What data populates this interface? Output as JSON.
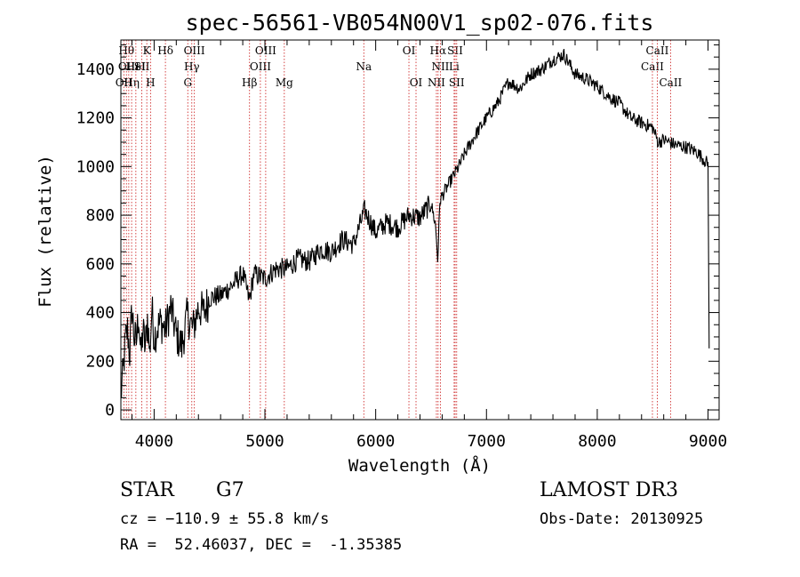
{
  "chart_data": {
    "type": "line",
    "title": "spec-56561-VB054N00V1_sp02-076.fits",
    "xlabel": "Wavelength (Å)",
    "ylabel": "Flux (relative)",
    "xlim": [
      3700,
      9100
    ],
    "ylim": [
      -40,
      1520
    ],
    "xticks": [
      4000,
      5000,
      6000,
      7000,
      8000,
      9000
    ],
    "yticks": [
      0,
      200,
      400,
      600,
      800,
      1000,
      1200,
      1400
    ],
    "series": [
      {
        "name": "flux",
        "x": [
          3700,
          3720,
          3740,
          3760,
          3780,
          3800,
          3820,
          3840,
          3860,
          3880,
          3900,
          3920,
          3940,
          3960,
          3980,
          4000,
          4030,
          4060,
          4100,
          4150,
          4200,
          4250,
          4300,
          4350,
          4400,
          4450,
          4500,
          4600,
          4700,
          4800,
          4860,
          4900,
          5000,
          5100,
          5200,
          5300,
          5400,
          5500,
          5600,
          5700,
          5800,
          5900,
          6000,
          6100,
          6200,
          6300,
          6400,
          6500,
          6540,
          6560,
          6580,
          6600,
          6650,
          6700,
          6750,
          6800,
          6900,
          7000,
          7100,
          7200,
          7300,
          7400,
          7500,
          7600,
          7700,
          7800,
          7900,
          8000,
          8100,
          8200,
          8300,
          8400,
          8500,
          8550,
          8600,
          8700,
          8800,
          8900,
          9000,
          9010
        ],
        "y": [
          60,
          150,
          280,
          330,
          230,
          420,
          300,
          280,
          400,
          220,
          330,
          250,
          380,
          230,
          420,
          300,
          340,
          360,
          330,
          420,
          310,
          260,
          390,
          330,
          420,
          400,
          460,
          470,
          510,
          560,
          450,
          560,
          540,
          580,
          580,
          620,
          610,
          660,
          650,
          700,
          680,
          820,
          730,
          770,
          750,
          800,
          790,
          850,
          760,
          620,
          860,
          880,
          920,
          960,
          1000,
          1050,
          1130,
          1200,
          1260,
          1350,
          1320,
          1380,
          1400,
          1440,
          1460,
          1380,
          1360,
          1330,
          1290,
          1260,
          1200,
          1180,
          1160,
          1100,
          1110,
          1090,
          1080,
          1060,
          1010,
          250
        ]
      }
    ],
    "lines": [
      {
        "x": 3727,
        "label": "OII",
        "row": 2
      },
      {
        "x": 3750,
        "label": "Hθ",
        "row": 0
      },
      {
        "x": 3771,
        "label": "OIII",
        "row": 1
      },
      {
        "x": 3797,
        "label": "Hη",
        "row": 2
      },
      {
        "x": 3835,
        "label": "HeI",
        "row": 1
      },
      {
        "x": 3889,
        "label": "SII",
        "row": 1
      },
      {
        "x": 3934,
        "label": "K",
        "row": 0
      },
      {
        "x": 3968,
        "label": "H",
        "row": 2
      },
      {
        "x": 4102,
        "label": "Hδ",
        "row": 0
      },
      {
        "x": 4304,
        "label": "G",
        "row": 2
      },
      {
        "x": 4340,
        "label": "Hγ",
        "row": 1
      },
      {
        "x": 4363,
        "label": "OIII",
        "row": 0
      },
      {
        "x": 4861,
        "label": "Hβ",
        "row": 2
      },
      {
        "x": 4959,
        "label": "OIII",
        "row": 1
      },
      {
        "x": 5007,
        "label": "OIII",
        "row": 0
      },
      {
        "x": 5175,
        "label": "Mg",
        "row": 2
      },
      {
        "x": 5893,
        "label": "Na",
        "row": 1
      },
      {
        "x": 6300,
        "label": "OI",
        "row": 0
      },
      {
        "x": 6364,
        "label": "OI",
        "row": 2
      },
      {
        "x": 6548,
        "label": "NII",
        "row": 2
      },
      {
        "x": 6563,
        "label": "Hα",
        "row": 0
      },
      {
        "x": 6584,
        "label": "NII",
        "row": 1
      },
      {
        "x": 6708,
        "label": "Li",
        "row": 1
      },
      {
        "x": 6717,
        "label": "SII",
        "row": 0
      },
      {
        "x": 6731,
        "label": "SII",
        "row": 2
      },
      {
        "x": 8498,
        "label": "CaII",
        "row": 1
      },
      {
        "x": 8542,
        "label": "CaII",
        "row": 0
      },
      {
        "x": 8662,
        "label": "CaII",
        "row": 2
      }
    ]
  },
  "info": {
    "class": "STAR",
    "subclass": "G7",
    "survey": "LAMOST DR3",
    "cz": "cz = −110.9 ± 55.8 km/s",
    "obs_date": "Obs-Date: 20130925",
    "coords": "RA =  52.46037, DEC =  -1.35385"
  }
}
